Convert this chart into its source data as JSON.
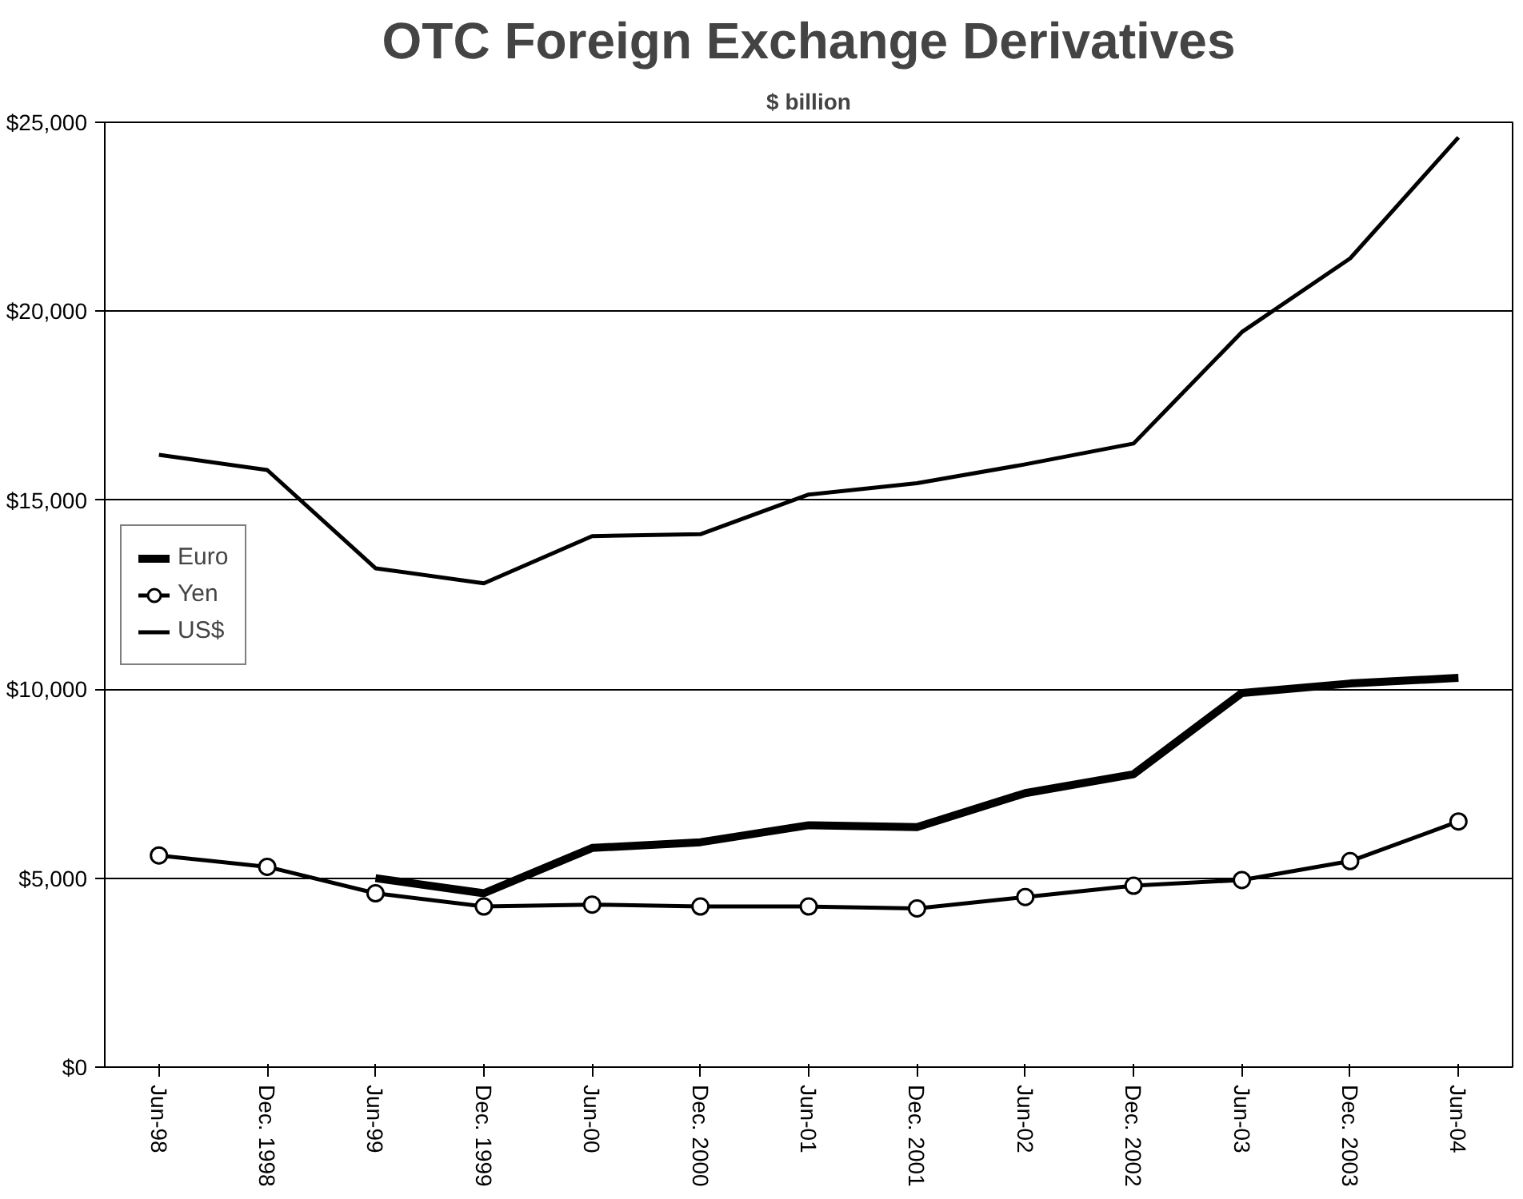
{
  "chart_data": {
    "type": "line",
    "title": "OTC Foreign Exchange Derivatives",
    "subtitle": "$ billion",
    "categories": [
      "Jun-98",
      "Dec. 1998",
      "Jun-99",
      "Dec. 1999",
      "Jun-00",
      "Dec. 2000",
      "Jun-01",
      "Dec. 2001",
      "Jun-02",
      "Dec. 2002",
      "Jun-03",
      "Dec. 2003",
      "Jun-04"
    ],
    "series": [
      {
        "name": "Euro",
        "color": "#000000",
        "marker": "none",
        "values": [
          null,
          null,
          5000,
          4600,
          5800,
          5950,
          6400,
          6350,
          7250,
          7750,
          9900,
          10150,
          10300
        ]
      },
      {
        "name": "Yen",
        "color": "#000000",
        "marker": "circle",
        "values": [
          5600,
          5300,
          4600,
          4250,
          4300,
          4250,
          4250,
          4200,
          4500,
          4800,
          4950,
          5450,
          6500
        ]
      },
      {
        "name": "US$",
        "color": "#000000",
        "marker": "none",
        "values": [
          16200,
          15800,
          13200,
          12800,
          14050,
          14100,
          15150,
          15450,
          15950,
          16500,
          19450,
          21400,
          24600
        ]
      }
    ],
    "ylim": [
      0,
      25000
    ],
    "yticks": [
      {
        "value": 0,
        "label": "$0"
      },
      {
        "value": 5000,
        "label": "$5,000"
      },
      {
        "value": 10000,
        "label": "$10,000"
      },
      {
        "value": 15000,
        "label": "$15,000"
      },
      {
        "value": 20000,
        "label": "$20,000"
      },
      {
        "value": 25000,
        "label": "$25,000"
      }
    ],
    "grid": "y",
    "legend": "left",
    "line_style": "solid"
  }
}
